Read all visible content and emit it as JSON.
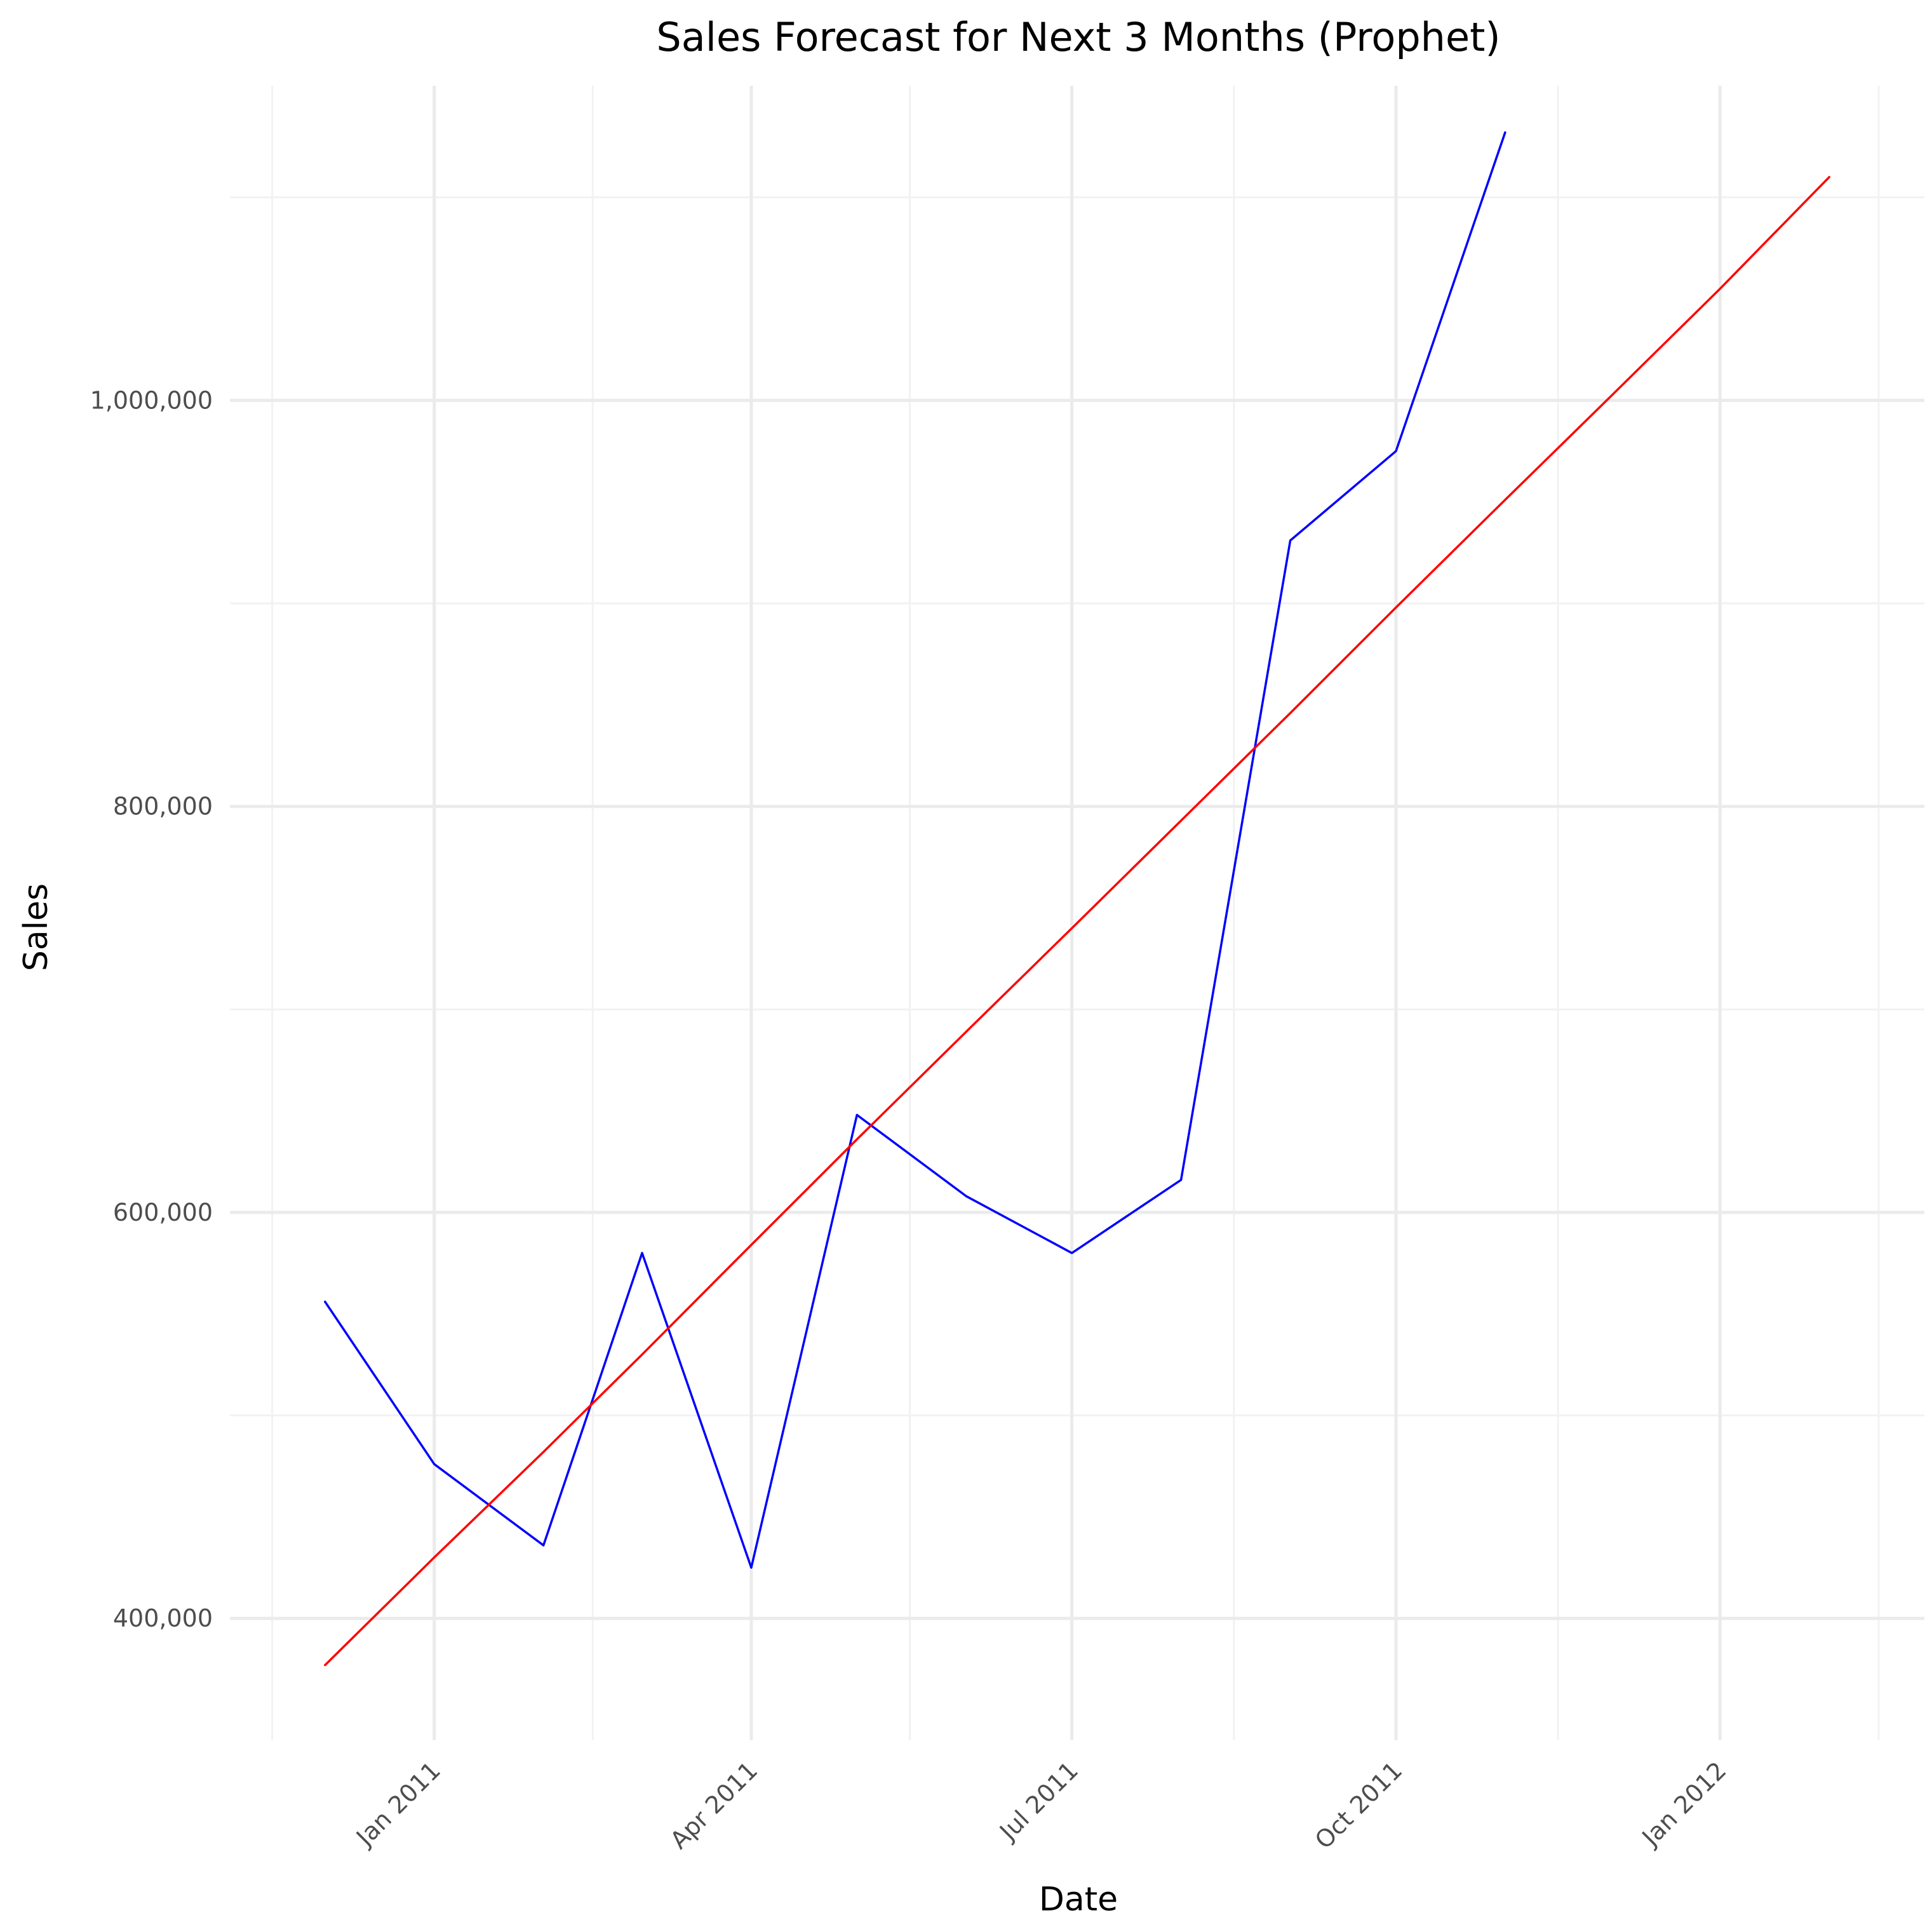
{
  "chart_data": {
    "type": "line",
    "title": "Sales Forecast for Next 3 Months (Prophet)",
    "xlabel": "Date",
    "ylabel": "Sales",
    "xlim": [
      "2010-11-04",
      "2012-02-28"
    ],
    "ylim": [
      340000,
      1155000
    ],
    "grid": true,
    "legend": "none",
    "x_ticks": [
      {
        "date": "2011-01-01",
        "label": "Jan 2011"
      },
      {
        "date": "2011-04-01",
        "label": "Apr 2011"
      },
      {
        "date": "2011-07-01",
        "label": "Jul 2011"
      },
      {
        "date": "2011-10-01",
        "label": "Oct 2011"
      },
      {
        "date": "2012-01-01",
        "label": "Jan 2012"
      }
    ],
    "x_minor_ticks": [
      "2010-11-16",
      "2011-02-15",
      "2011-05-16",
      "2011-08-16",
      "2011-11-16",
      "2012-02-15"
    ],
    "y_ticks": [
      {
        "value": 400000,
        "label": "400,000"
      },
      {
        "value": 600000,
        "label": "600,000"
      },
      {
        "value": 800000,
        "label": "800,000"
      },
      {
        "value": 1000000,
        "label": "1,000,000"
      }
    ],
    "y_minor_ticks": [
      500000,
      700000,
      900000,
      1100000
    ],
    "series": [
      {
        "color": "#0000ff",
        "points": [
          {
            "x": "2010-12-01",
            "y": 556000
          },
          {
            "x": "2011-01-01",
            "y": 476000
          },
          {
            "x": "2011-02-01",
            "y": 436000
          },
          {
            "x": "2011-03-01",
            "y": 580000
          },
          {
            "x": "2011-04-01",
            "y": 425000
          },
          {
            "x": "2011-05-01",
            "y": 648000
          },
          {
            "x": "2011-06-01",
            "y": 608000
          },
          {
            "x": "2011-07-01",
            "y": 580000
          },
          {
            "x": "2011-08-01",
            "y": 616000
          },
          {
            "x": "2011-09-01",
            "y": 931000
          },
          {
            "x": "2011-10-01",
            "y": 975000
          },
          {
            "x": "2011-11-01",
            "y": 1132000
          }
        ]
      },
      {
        "color": "#ff0000",
        "points": [
          {
            "x": "2010-12-01",
            "y": 377000
          },
          {
            "x": "2011-01-01",
            "y": 430000
          },
          {
            "x": "2011-02-01",
            "y": 482000
          },
          {
            "x": "2011-03-01",
            "y": 530000
          },
          {
            "x": "2011-04-01",
            "y": 584000
          },
          {
            "x": "2011-05-01",
            "y": 636000
          },
          {
            "x": "2011-06-01",
            "y": 689000
          },
          {
            "x": "2011-07-01",
            "y": 740000
          },
          {
            "x": "2011-08-01",
            "y": 793000
          },
          {
            "x": "2011-09-01",
            "y": 846000
          },
          {
            "x": "2011-10-01",
            "y": 898000
          },
          {
            "x": "2011-11-01",
            "y": 951000
          },
          {
            "x": "2011-12-01",
            "y": 1002000
          },
          {
            "x": "2012-01-01",
            "y": 1055000
          },
          {
            "x": "2012-02-01",
            "y": 1110000
          }
        ]
      }
    ]
  }
}
